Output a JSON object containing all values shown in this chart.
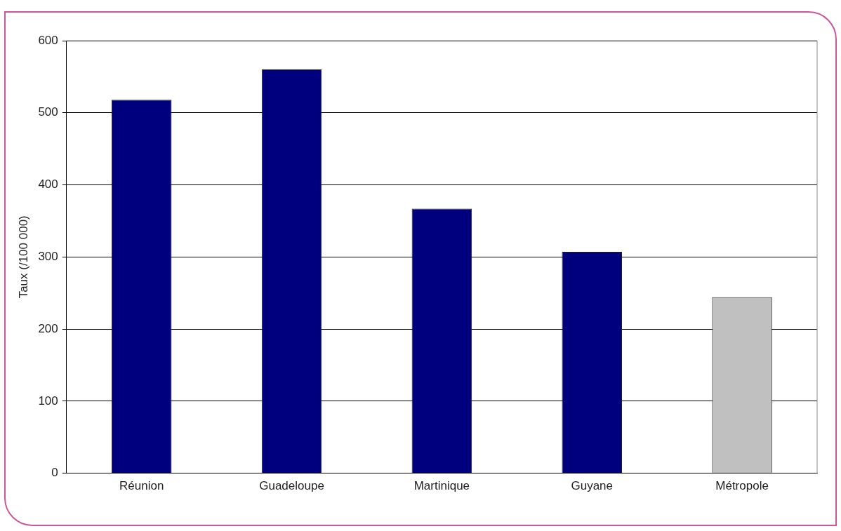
{
  "chart_data": {
    "type": "bar",
    "ylabel": "Taux (/100 000)",
    "categories": [
      "Réunion",
      "Guadeloupe",
      "Martinique",
      "Guyane",
      "Métropole"
    ],
    "values": [
      518,
      560,
      367,
      307,
      244
    ],
    "colors": [
      "#00007f",
      "#00007f",
      "#00007f",
      "#00007f",
      "#c0c0c0"
    ],
    "ylim": [
      0,
      600
    ],
    "yticks": [
      0,
      100,
      200,
      300,
      400,
      500,
      600
    ],
    "grid": "y",
    "legend": false
  }
}
